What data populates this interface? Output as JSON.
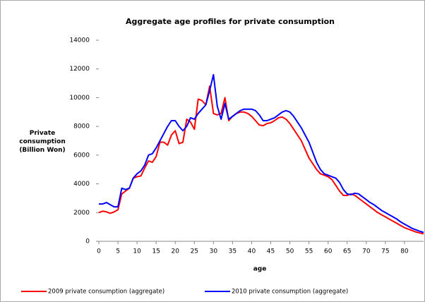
{
  "chart_data": {
    "type": "line",
    "title": "Aggregate age profiles for private consumption",
    "ylabel": "Private consumption (Billion Won)",
    "xlabel": "age",
    "x": [
      0,
      1,
      2,
      3,
      4,
      5,
      6,
      7,
      8,
      9,
      10,
      11,
      12,
      13,
      14,
      15,
      16,
      17,
      18,
      19,
      20,
      21,
      22,
      23,
      24,
      25,
      26,
      27,
      28,
      29,
      30,
      31,
      32,
      33,
      34,
      35,
      36,
      37,
      38,
      39,
      40,
      41,
      42,
      43,
      44,
      45,
      46,
      47,
      48,
      49,
      50,
      51,
      52,
      53,
      54,
      55,
      56,
      57,
      58,
      59,
      60,
      61,
      62,
      63,
      64,
      65,
      66,
      67,
      68,
      69,
      70,
      71,
      72,
      73,
      74,
      75,
      76,
      77,
      78,
      79,
      80,
      81,
      82,
      83,
      84,
      85
    ],
    "series": [
      {
        "name": "2009 private consumption (aggregate)",
        "color": "#ff0000",
        "values": [
          2000,
          2100,
          2050,
          1950,
          2050,
          2200,
          3300,
          3500,
          3700,
          4400,
          4500,
          4550,
          5100,
          5600,
          5500,
          5900,
          6900,
          6900,
          6700,
          7400,
          7700,
          6800,
          6900,
          8500,
          8300,
          7800,
          9900,
          9800,
          9500,
          10800,
          8900,
          8800,
          8900,
          10000,
          8400,
          8700,
          8900,
          9000,
          9000,
          8900,
          8700,
          8400,
          8100,
          8050,
          8200,
          8250,
          8400,
          8600,
          8650,
          8500,
          8200,
          7800,
          7400,
          7000,
          6400,
          5800,
          5400,
          5000,
          4700,
          4600,
          4500,
          4300,
          3900,
          3500,
          3200,
          3200,
          3300,
          3200,
          3000,
          2800,
          2600,
          2400,
          2200,
          2000,
          1850,
          1700,
          1550,
          1400,
          1250,
          1100,
          950,
          850,
          750,
          650,
          580,
          520
        ]
      },
      {
        "name": "2010 private consumption (aggregate)",
        "color": "#0000ff",
        "values": [
          2600,
          2600,
          2700,
          2550,
          2400,
          2400,
          3700,
          3600,
          3700,
          4400,
          4700,
          4900,
          5300,
          6000,
          6100,
          6500,
          7000,
          7500,
          8000,
          8400,
          8400,
          8000,
          7700,
          8000,
          8600,
          8500,
          8900,
          9200,
          9500,
          10500,
          11600,
          9400,
          8500,
          9600,
          8500,
          8700,
          8900,
          9100,
          9200,
          9200,
          9200,
          9100,
          8800,
          8400,
          8400,
          8500,
          8600,
          8800,
          9000,
          9100,
          9000,
          8700,
          8300,
          7900,
          7400,
          6900,
          6200,
          5500,
          5000,
          4700,
          4600,
          4500,
          4400,
          4100,
          3600,
          3300,
          3250,
          3350,
          3300,
          3100,
          2900,
          2700,
          2550,
          2350,
          2150,
          2000,
          1850,
          1700,
          1550,
          1350,
          1200,
          1050,
          900,
          800,
          700,
          620
        ]
      }
    ],
    "xlim": [
      0,
      85
    ],
    "xticks": [
      0,
      5,
      10,
      15,
      20,
      25,
      30,
      35,
      40,
      45,
      50,
      55,
      60,
      65,
      70,
      75,
      80
    ],
    "ylim": [
      0,
      14000
    ],
    "yticks": [
      0,
      2000,
      4000,
      6000,
      8000,
      10000,
      12000,
      14000
    ],
    "grid": false,
    "legend": "bottom"
  }
}
